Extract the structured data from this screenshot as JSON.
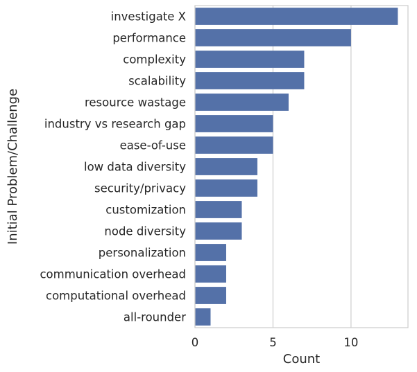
{
  "chart_data": {
    "type": "bar",
    "orientation": "horizontal",
    "categories": [
      "investigate X",
      "performance",
      "complexity",
      "scalability",
      "resource wastage",
      "industry vs research gap",
      "ease-of-use",
      "low data diversity",
      "security/privacy",
      "customization",
      "node diversity",
      "personalization",
      "communication overhead",
      "computational overhead",
      "all-rounder"
    ],
    "values": [
      13,
      10,
      7,
      7,
      6,
      5,
      5,
      4,
      4,
      3,
      3,
      2,
      2,
      2,
      1
    ],
    "xlabel": "Count",
    "ylabel": "Initial Problem/Challenge",
    "xlim": [
      0,
      13.65
    ],
    "xticks": [
      0,
      5,
      10
    ],
    "grid": "vertical",
    "bar_color": "#5471a8",
    "grid_color": "#cccccc"
  }
}
